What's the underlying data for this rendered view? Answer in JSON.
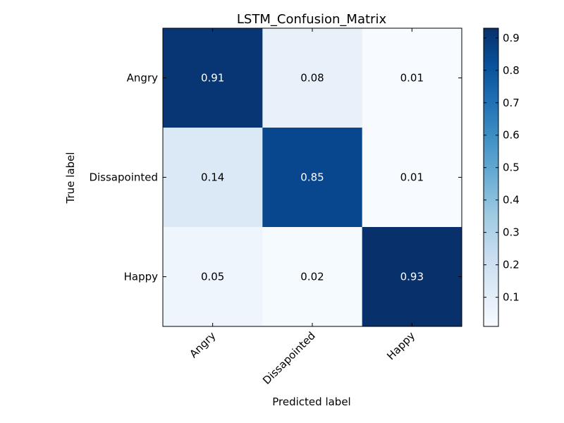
{
  "chart_data": {
    "type": "heatmap",
    "title": "LSTM_Confusion_Matrix",
    "xlabel": "Predicted label",
    "ylabel": "True label",
    "x_categories": [
      "Angry",
      "Dissapointed",
      "Happy"
    ],
    "y_categories": [
      "Angry",
      "Dissapointed",
      "Happy"
    ],
    "values": [
      [
        0.91,
        0.08,
        0.01
      ],
      [
        0.14,
        0.85,
        0.01
      ],
      [
        0.05,
        0.02,
        0.93
      ]
    ],
    "colormap": "Blues",
    "colorbar": {
      "range": [
        0.01,
        0.93
      ],
      "ticks": [
        "0.1",
        "0.2",
        "0.3",
        "0.4",
        "0.5",
        "0.6",
        "0.7",
        "0.8",
        "0.9"
      ]
    },
    "grid": false
  }
}
